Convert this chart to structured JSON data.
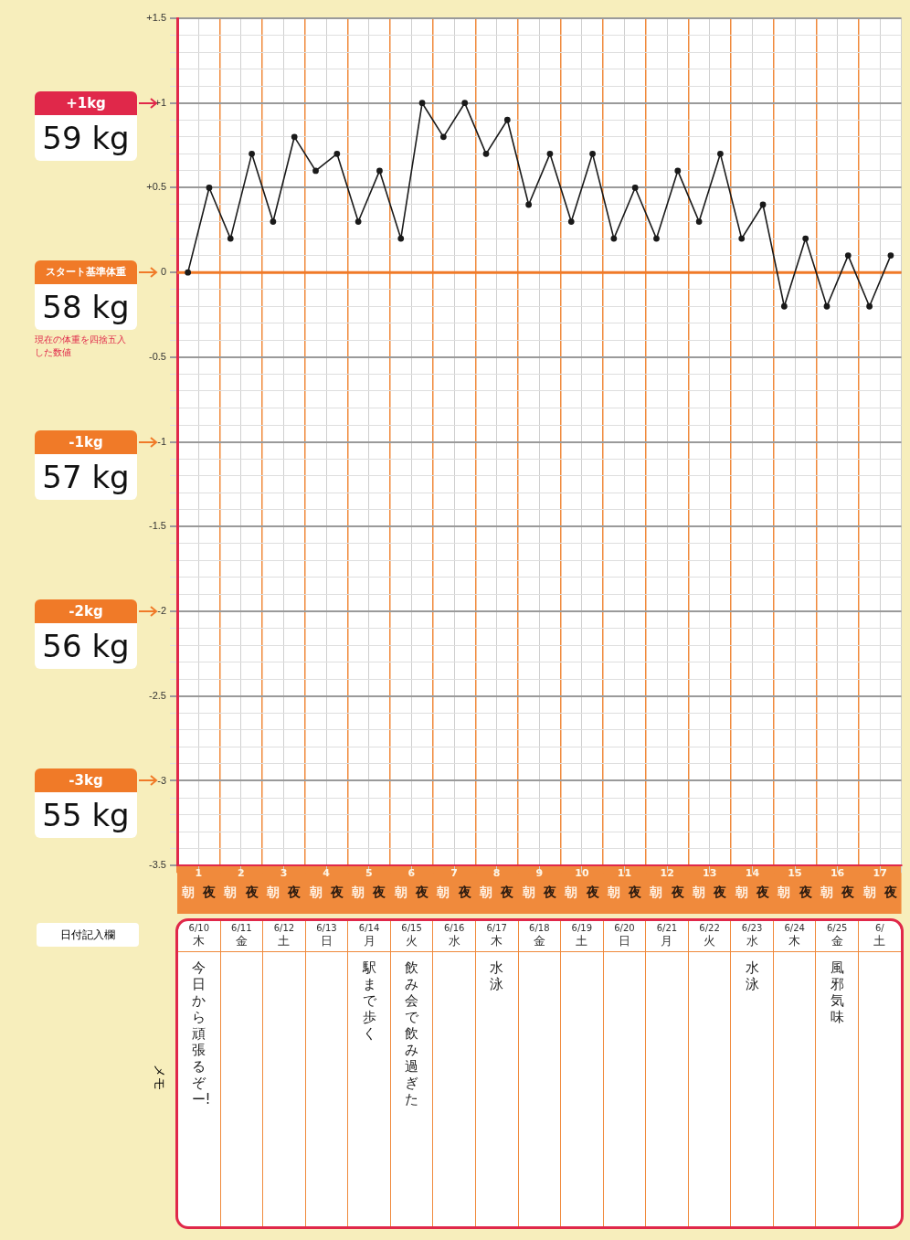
{
  "chart_data": {
    "type": "line",
    "categories": [
      "朝",
      "夜",
      "朝",
      "夜",
      "朝",
      "夜",
      "朝",
      "夜",
      "朝",
      "夜",
      "朝",
      "夜",
      "朝",
      "夜",
      "朝",
      "夜",
      "朝",
      "夜",
      "朝",
      "夜",
      "朝",
      "夜",
      "朝",
      "夜",
      "朝",
      "夜",
      "朝",
      "夜",
      "朝",
      "夜",
      "朝",
      "夜",
      "朝",
      "夜"
    ],
    "values": [
      0,
      0.5,
      0.2,
      0.7,
      0.3,
      0.8,
      0.6,
      0.7,
      0.3,
      0.6,
      0.2,
      1.0,
      0.8,
      1.0,
      0.7,
      0.9,
      0.4,
      0.7,
      0.3,
      0.7,
      0.2,
      0.5,
      0.2,
      0.6,
      0.3,
      0.7,
      0.2,
      0.4,
      -0.2,
      0.2,
      -0.2,
      0.1,
      -0.2,
      0.1
    ],
    "color": "#1a1a1a",
    "marker": "circle",
    "line_style": "solid",
    "ylim": [
      -3.5,
      1.5
    ],
    "yticks": [
      -3.5,
      {
        "value": -3.4,
        "label": null
      },
      {
        "value": -3.3,
        "label": null
      },
      {
        "value": -3.2,
        "label": null
      },
      {
        "value": -3.1,
        "label": null
      },
      -3,
      {
        "value": -2.9,
        "label": null
      },
      {
        "value": -2.8,
        "label": null
      },
      {
        "value": -2.7,
        "label": null
      },
      {
        "value": -2.6,
        "label": null
      },
      -2.5,
      {
        "value": -2.4,
        "label": null
      },
      {
        "value": -2.3,
        "label": null
      },
      {
        "value": -2.2,
        "label": null
      },
      {
        "value": -2.1,
        "label": null
      },
      -2,
      {
        "value": -1.9,
        "label": null
      },
      {
        "value": -1.8,
        "label": null
      },
      {
        "value": -1.7,
        "label": null
      },
      {
        "value": -1.6,
        "label": null
      },
      -1.5,
      {
        "value": -1.4,
        "label": null
      },
      {
        "value": -1.3,
        "label": null
      },
      {
        "value": -1.2,
        "label": null
      },
      {
        "value": -1.1,
        "label": null
      },
      -1,
      {
        "value": -0.9,
        "label": null
      },
      {
        "value": -0.8,
        "label": null
      },
      {
        "value": -0.7,
        "label": null
      },
      {
        "value": -0.6,
        "label": null
      },
      -0.5,
      {
        "value": -0.4,
        "label": null
      },
      {
        "value": -0.3,
        "label": null
      },
      {
        "value": -0.2,
        "label": null
      },
      {
        "value": -0.1,
        "label": null
      },
      0,
      {
        "value": 0.1,
        "label": null
      },
      {
        "value": 0.2,
        "label": null
      },
      {
        "value": 0.3,
        "label": null
      },
      {
        "value": 0.4,
        "label": null
      },
      {
        "value": 0.5,
        "label": "+0.5"
      },
      {
        "value": 0.6,
        "label": null
      },
      {
        "value": 0.7,
        "label": null
      },
      {
        "value": 0.8,
        "label": null
      },
      {
        "value": 0.9,
        "label": null
      },
      {
        "value": 1,
        "label": "+1"
      },
      {
        "value": 1.1,
        "label": null
      },
      {
        "value": 1.2,
        "label": null
      },
      {
        "value": 1.3,
        "label": null
      },
      {
        "value": 1.4,
        "label": null
      },
      {
        "value": 1.5,
        "label": "+1.5"
      }
    ],
    "grid": true,
    "legend": false,
    "ref_lines": [
      {
        "axis": "y",
        "value": 0,
        "color": "#f07a28"
      }
    ],
    "annotations": [
      "+1kg",
      "59 kg",
      "スタート基準体重",
      "58 kg",
      "現在の体重を四捨五入した数値",
      "-1kg",
      "57 kg",
      "-2kg",
      "56 kg",
      "-3kg",
      "55 kg",
      "日付記入欄",
      "メモ",
      "1",
      "2",
      "3",
      "4",
      "5",
      "6",
      "7",
      "8",
      "9",
      "10",
      "11",
      "12",
      "13",
      "14",
      "15",
      "16",
      "17",
      "6/10",
      "6/11",
      "6/12",
      "6/13",
      "6/14",
      "6/15",
      "6/16",
      "6/17",
      "6/18",
      "6/19",
      "6/20",
      "6/21",
      "6/22",
      "6/23",
      "6/24",
      "6/25",
      "6/",
      "木",
      "金",
      "土",
      "日",
      "月",
      "火",
      "水",
      "木",
      "金",
      "土",
      "日",
      "月",
      "火",
      "水",
      "木",
      "金",
      "土",
      "今日から頑張るぞー!",
      "駅まで歩く",
      "飲み会で飲み過ぎた",
      "水泳",
      "水泳",
      "風邪気味"
    ]
  }
}
